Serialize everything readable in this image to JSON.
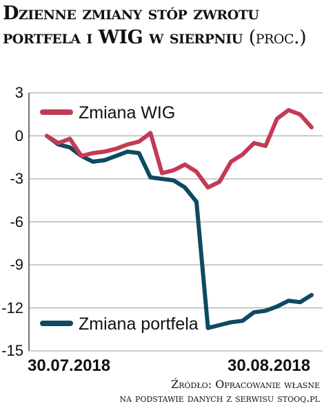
{
  "chart_data": {
    "type": "line",
    "title": "Dzienne zmiany stóp zwrotu portfela i WIG w sierpniu",
    "title_unit": "(proc.)",
    "x_start_label": "30.07.2018",
    "x_end_label": "30.08.2018",
    "ylim": [
      -15,
      3
    ],
    "yticks": [
      3,
      0,
      -3,
      -6,
      -9,
      -12,
      -15
    ],
    "grid": "horizontal",
    "legend": "inside",
    "series": [
      {
        "name": "Zmiana WIG",
        "color": "#c23b55",
        "values": [
          0.0,
          -0.5,
          -0.2,
          -1.4,
          -1.2,
          -1.1,
          -0.9,
          -0.6,
          -0.4,
          0.2,
          -2.6,
          -2.4,
          -2.0,
          -2.5,
          -3.6,
          -3.2,
          -1.8,
          -1.3,
          -0.5,
          -0.7,
          1.2,
          1.8,
          1.5,
          0.6
        ]
      },
      {
        "name": "Zmiana portfela",
        "color": "#0e4a60",
        "values": [
          0.0,
          -0.6,
          -0.8,
          -1.4,
          -1.8,
          -1.7,
          -1.4,
          -1.1,
          -1.2,
          -2.9,
          -3.0,
          -3.1,
          -3.6,
          -4.6,
          -13.4,
          -13.2,
          -13.0,
          -12.9,
          -12.3,
          -12.2,
          -11.9,
          -11.5,
          -11.6,
          -11.1
        ]
      }
    ]
  },
  "source": {
    "line1": "Źródło: Opracowanie własne",
    "line2": "na podstawie danych z serwisu stooq.pl"
  }
}
